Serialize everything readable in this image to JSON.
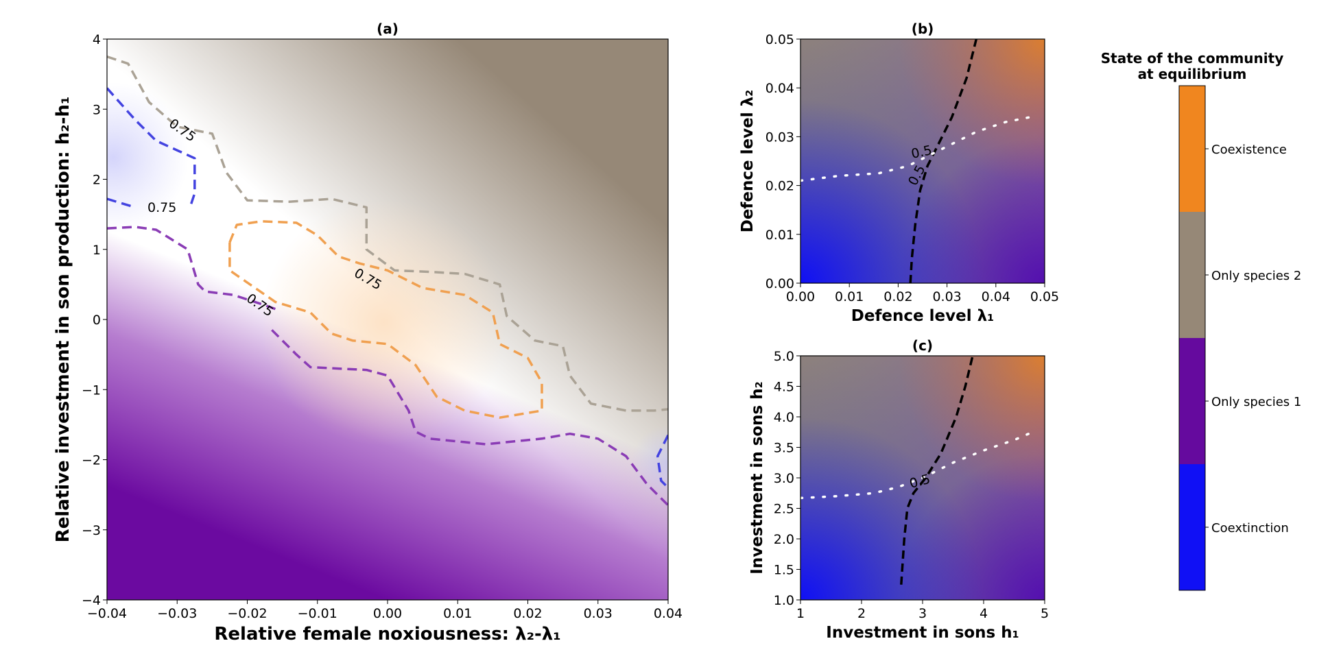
{
  "colors": {
    "coextinction": "#1010f5",
    "only_species_1": "#650a9e",
    "only_species_2": "#968877",
    "coexistence": "#f0861f",
    "contour_blue": "#4343e0",
    "contour_gray": "#aaa295",
    "contour_orange": "#f0a050",
    "contour_purple": "#8a3cb5"
  },
  "chart_data": [
    {
      "id": "a",
      "type": "heatmap",
      "title": "(a)",
      "xlabel": "Relative female noxiousness: λ₂-λ₁",
      "ylabel": "Relative investment in son production: h₂-h₁",
      "xlim": [
        -0.04,
        0.04
      ],
      "ylim": [
        -4,
        4
      ],
      "xticks": [
        "−0.04",
        "−0.03",
        "−0.02",
        "−0.01",
        "0.00",
        "0.01",
        "0.02",
        "0.03",
        "0.04"
      ],
      "yticks": [
        "−4",
        "−3",
        "−2",
        "−1",
        "0",
        "1",
        "2",
        "3",
        "4"
      ],
      "contour_level_label": "0.75",
      "contours": [
        {
          "class": "only_species_2",
          "points": [
            [
              -0.04,
              3.75
            ],
            [
              -0.037,
              3.65
            ],
            [
              -0.034,
              3.1
            ],
            [
              -0.03,
              2.75
            ],
            [
              -0.025,
              2.65
            ],
            [
              -0.023,
              2.1
            ],
            [
              -0.02,
              1.7
            ],
            [
              -0.014,
              1.68
            ],
            [
              -0.008,
              1.72
            ],
            [
              -0.003,
              1.6
            ],
            [
              -0.003,
              1.0
            ],
            [
              0.001,
              0.7
            ],
            [
              0.006,
              0.68
            ],
            [
              0.011,
              0.65
            ],
            [
              0.016,
              0.5
            ],
            [
              0.017,
              0.05
            ],
            [
              0.021,
              -0.3
            ],
            [
              0.025,
              -0.38
            ],
            [
              0.026,
              -0.8
            ],
            [
              0.029,
              -1.2
            ],
            [
              0.034,
              -1.3
            ],
            [
              0.038,
              -1.3
            ],
            [
              0.04,
              -1.28
            ]
          ]
        },
        {
          "class": "coextinction",
          "points": [
            [
              -0.04,
              3.3
            ],
            [
              -0.036,
              2.85
            ],
            [
              -0.033,
              2.55
            ],
            [
              -0.0275,
              2.3
            ],
            [
              -0.0275,
              1.8
            ],
            [
              -0.028,
              1.65
            ]
          ]
        },
        {
          "class": "coextinction",
          "points": [
            [
              -0.04,
              1.72
            ],
            [
              -0.036,
              1.6
            ]
          ]
        },
        {
          "class": "coextinction",
          "points": [
            [
              0.04,
              -1.65
            ],
            [
              0.0385,
              -1.95
            ],
            [
              0.039,
              -2.3
            ],
            [
              0.04,
              -2.4
            ]
          ]
        },
        {
          "class": "coexistence",
          "points": [
            [
              -0.0225,
              1.1
            ],
            [
              -0.0215,
              1.35
            ],
            [
              -0.018,
              1.4
            ],
            [
              -0.013,
              1.38
            ],
            [
              -0.01,
              1.2
            ],
            [
              -0.007,
              0.9
            ],
            [
              -0.004,
              0.8
            ],
            [
              0.0,
              0.7
            ],
            [
              0.002,
              0.6
            ],
            [
              0.005,
              0.45
            ],
            [
              0.011,
              0.35
            ],
            [
              0.015,
              0.1
            ],
            [
              0.016,
              -0.35
            ],
            [
              0.02,
              -0.55
            ],
            [
              0.022,
              -0.9
            ],
            [
              0.022,
              -1.3
            ],
            [
              0.016,
              -1.4
            ],
            [
              0.011,
              -1.3
            ],
            [
              0.007,
              -1.1
            ],
            [
              0.004,
              -0.65
            ],
            [
              0.0,
              -0.35
            ],
            [
              -0.005,
              -0.3
            ],
            [
              -0.008,
              -0.2
            ],
            [
              -0.011,
              0.1
            ],
            [
              -0.016,
              0.25
            ],
            [
              -0.0225,
              0.7
            ],
            [
              -0.0225,
              1.1
            ]
          ]
        },
        {
          "class": "only_species_1",
          "points": [
            [
              -0.04,
              1.3
            ],
            [
              -0.036,
              1.32
            ],
            [
              -0.033,
              1.28
            ],
            [
              -0.0285,
              1.0
            ],
            [
              -0.027,
              0.5
            ],
            [
              -0.026,
              0.4
            ],
            [
              -0.022,
              0.35
            ],
            [
              -0.018,
              0.22
            ],
            [
              -0.016,
              0.15
            ]
          ]
        },
        {
          "class": "only_species_1",
          "points": [
            [
              -0.0165,
              -0.15
            ],
            [
              -0.013,
              -0.5
            ],
            [
              -0.011,
              -0.68
            ],
            [
              -0.007,
              -0.7
            ],
            [
              -0.003,
              -0.72
            ],
            [
              0.0,
              -0.8
            ],
            [
              0.003,
              -1.3
            ],
            [
              0.004,
              -1.6
            ],
            [
              0.006,
              -1.7
            ],
            [
              0.011,
              -1.75
            ],
            [
              0.014,
              -1.78
            ],
            [
              0.017,
              -1.75
            ],
            [
              0.022,
              -1.7
            ],
            [
              0.026,
              -1.63
            ],
            [
              0.03,
              -1.7
            ],
            [
              0.034,
              -1.95
            ],
            [
              0.037,
              -2.35
            ],
            [
              0.04,
              -2.65
            ]
          ]
        }
      ]
    },
    {
      "id": "b",
      "type": "heatmap",
      "title": "(b)",
      "xlabel": "Defence level λ₁",
      "ylabel": "Defence level λ₂",
      "xlim": [
        0.0,
        0.05
      ],
      "ylim": [
        0.0,
        0.05
      ],
      "xticks": [
        "0.00",
        "0.01",
        "0.02",
        "0.03",
        "0.04",
        "0.05"
      ],
      "yticks": [
        "0.00",
        "0.01",
        "0.02",
        "0.03",
        "0.04",
        "0.05"
      ],
      "contour_level_label": "0.5",
      "contours": [
        {
          "style": "black-dashed",
          "points": [
            [
              0.0225,
              0.0
            ],
            [
              0.0228,
              0.005
            ],
            [
              0.0235,
              0.012
            ],
            [
              0.0245,
              0.019
            ],
            [
              0.026,
              0.024
            ],
            [
              0.028,
              0.028
            ],
            [
              0.031,
              0.034
            ],
            [
              0.034,
              0.042
            ],
            [
              0.036,
              0.05
            ]
          ]
        },
        {
          "style": "white-dotted",
          "points": [
            [
              0.0,
              0.021
            ],
            [
              0.008,
              0.022
            ],
            [
              0.016,
              0.0225
            ],
            [
              0.022,
              0.024
            ],
            [
              0.026,
              0.026
            ],
            [
              0.03,
              0.028
            ],
            [
              0.036,
              0.031
            ],
            [
              0.042,
              0.033
            ],
            [
              0.047,
              0.034
            ]
          ]
        }
      ]
    },
    {
      "id": "c",
      "type": "heatmap",
      "title": "(c)",
      "xlabel": "Investment in sons h₁",
      "ylabel": "Investment in sons h₂",
      "xlim": [
        1,
        5
      ],
      "ylim": [
        1.0,
        5.0
      ],
      "xticks": [
        "1",
        "2",
        "3",
        "4",
        "5"
      ],
      "yticks": [
        "1.0",
        "1.5",
        "2.0",
        "2.5",
        "3.0",
        "3.5",
        "4.0",
        "4.5",
        "5.0"
      ],
      "contour_level_label": "0.5",
      "contours": [
        {
          "style": "black-dashed",
          "points": [
            [
              2.65,
              1.25
            ],
            [
              2.7,
              2.0
            ],
            [
              2.75,
              2.5
            ],
            [
              2.85,
              2.75
            ],
            [
              3.05,
              3.0
            ],
            [
              3.3,
              3.4
            ],
            [
              3.55,
              4.0
            ],
            [
              3.7,
              4.5
            ],
            [
              3.82,
              5.0
            ]
          ]
        },
        {
          "style": "white-dotted",
          "points": [
            [
              1.0,
              2.67
            ],
            [
              1.6,
              2.7
            ],
            [
              2.2,
              2.75
            ],
            [
              2.6,
              2.85
            ],
            [
              3.0,
              3.0
            ],
            [
              3.5,
              3.25
            ],
            [
              4.0,
              3.45
            ],
            [
              4.5,
              3.62
            ],
            [
              4.8,
              3.75
            ]
          ]
        }
      ]
    }
  ],
  "colorbar": {
    "title_line1": "State of the community",
    "title_line2": "at equilibrium",
    "labels": [
      "Coexistence",
      "Only species 2",
      "Only species 1",
      "Coextinction"
    ]
  }
}
